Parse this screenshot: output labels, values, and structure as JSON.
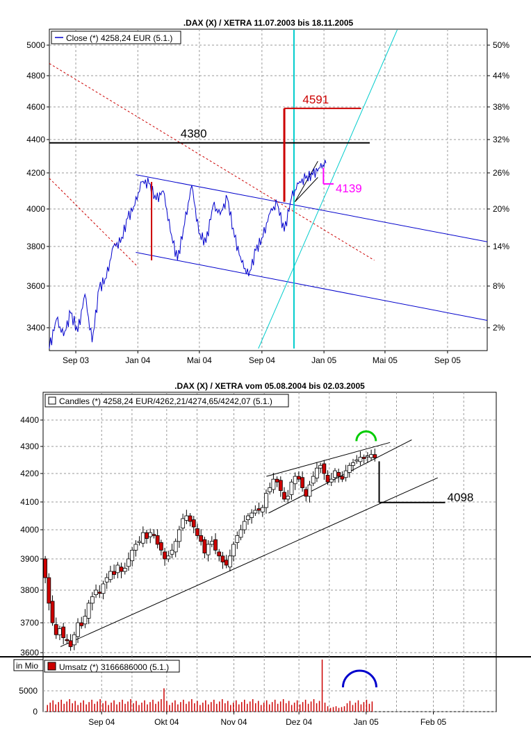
{
  "chart_data": [
    {
      "type": "line",
      "title": ".DAX (X) / XETRA 11.07.2003 bis 18.11.2005",
      "legend": "Close (*) 4258,24 EUR (5.1.)",
      "legend_placement": "top-left",
      "grid": true,
      "xlim": [
        "2003-07-11",
        "2005-11-18"
      ],
      "ylim": [
        3300,
        5100
      ],
      "x_ticks": [
        "Sep 03",
        "Jan 04",
        "Mai 04",
        "Sep 04",
        "Jan 05",
        "Mai 05",
        "Sep 05"
      ],
      "y_ticks_left": [
        "3400",
        "3600",
        "3800",
        "4000",
        "4200",
        "4400",
        "4600",
        "4800",
        "5000"
      ],
      "y_ticks_right": [
        "2%",
        "8%",
        "14%",
        "20%",
        "26%",
        "32%",
        "38%",
        "44%",
        "50%"
      ],
      "series": [
        {
          "name": "Close (*) 4258,24 EUR (5.1.)",
          "color": "#0000cc",
          "x": [
            "2003-07-11",
            "2003-07-25",
            "2003-08-08",
            "2003-08-22",
            "2003-09-05",
            "2003-09-19",
            "2003-10-03",
            "2003-10-17",
            "2003-10-31",
            "2003-11-14",
            "2003-11-28",
            "2003-12-12",
            "2003-12-26",
            "2004-01-09",
            "2004-01-23",
            "2004-02-06",
            "2004-02-20",
            "2004-03-05",
            "2004-03-19",
            "2004-04-02",
            "2004-04-16",
            "2004-04-30",
            "2004-05-14",
            "2004-05-28",
            "2004-06-11",
            "2004-06-25",
            "2004-07-09",
            "2004-07-23",
            "2004-08-06",
            "2004-08-20",
            "2004-09-03",
            "2004-09-17",
            "2004-10-01",
            "2004-10-15",
            "2004-10-29",
            "2004-11-12",
            "2004-11-26",
            "2004-12-10",
            "2004-12-24",
            "2005-01-05"
          ],
          "y": [
            3300,
            3440,
            3360,
            3470,
            3380,
            3560,
            3330,
            3590,
            3640,
            3800,
            3820,
            3950,
            4020,
            4150,
            4140,
            4050,
            4100,
            3880,
            3730,
            3920,
            4130,
            3870,
            3820,
            4020,
            3970,
            4060,
            3850,
            3720,
            3650,
            3780,
            3850,
            3980,
            4030,
            3880,
            4060,
            4140,
            4170,
            4190,
            4230,
            4258
          ]
        }
      ],
      "lines": [
        {
          "label": "4380",
          "y": 4380,
          "color": "#000000"
        },
        {
          "label": "4591",
          "y": 4591,
          "color": "#cc0000"
        },
        {
          "label": "4139",
          "y": 4139,
          "color": "#ff00ff"
        }
      ]
    },
    {
      "type": "candlestick",
      "title": ".DAX (X) / XETRA vom 05.08.2004 bis 02.03.2005",
      "legend": "Candles (*) 4258,24 EUR/4262,21/4274,65/4242,07 (5.1.)",
      "legend_placement": "top-left",
      "grid": true,
      "xlim": [
        "2004-08-05",
        "2005-03-02"
      ],
      "ylim": [
        3600,
        4470
      ],
      "x_ticks": [
        "Sep 04",
        "Okt 04",
        "Nov 04",
        "Dez 04",
        "Jan 05",
        "Feb 05"
      ],
      "y_ticks": [
        "3600",
        "3700",
        "3800",
        "3900",
        "4000",
        "4100",
        "4200",
        "4300",
        "4400"
      ],
      "close": [
        3840,
        3760,
        3700,
        3660,
        3680,
        3650,
        3640,
        3620,
        3660,
        3700,
        3690,
        3720,
        3760,
        3780,
        3800,
        3790,
        3820,
        3840,
        3860,
        3850,
        3880,
        3860,
        3870,
        3900,
        3930,
        3950,
        3960,
        3990,
        3970,
        3990,
        3980,
        3950,
        3930,
        3900,
        3910,
        3930,
        3960,
        4000,
        4040,
        4050,
        4030,
        4010,
        3980,
        3960,
        3920,
        3950,
        3960,
        3930,
        3910,
        3890,
        3880,
        3910,
        3950,
        3980,
        4000,
        4030,
        4050,
        4060,
        4070,
        4070,
        4080,
        4130,
        4150,
        4180,
        4170,
        4140,
        4110,
        4120,
        4170,
        4190,
        4180,
        4150,
        4120,
        4160,
        4190,
        4220,
        4230,
        4200,
        4170,
        4180,
        4210,
        4190,
        4180,
        4210,
        4230,
        4240,
        4250,
        4260,
        4255,
        4265,
        4270,
        4258
      ],
      "annotation": "4098",
      "volume_panel": {
        "ylabel": "in Mio",
        "legend": "Umsatz (*) 3166686000 (5.1.)",
        "y_ticks": [
          "0",
          "5000"
        ],
        "color": "#cc0000"
      }
    }
  ]
}
